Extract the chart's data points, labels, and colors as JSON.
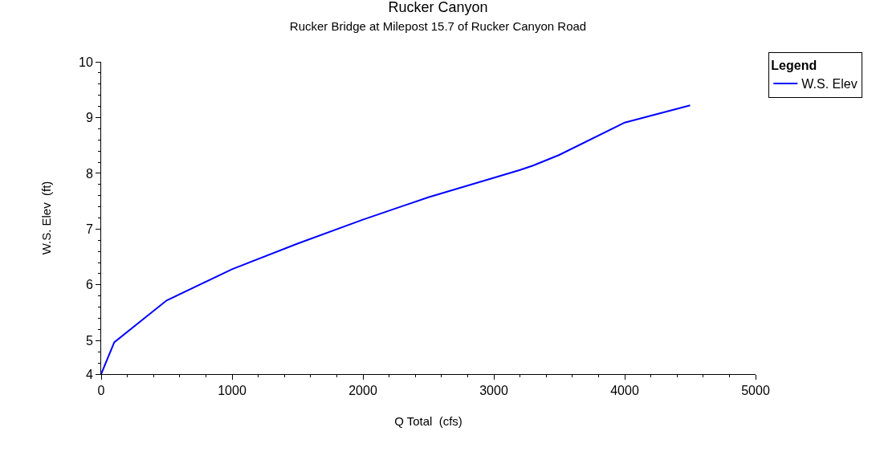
{
  "chart_data": {
    "type": "line",
    "title": "Rucker Canyon",
    "subtitle": "Rucker Bridge at Milepost 15.7 of Rucker Canyon Road",
    "xlabel": "Q Total  (cfs)",
    "ylabel": "W.S. Elev  (ft)",
    "legend_title": "Legend",
    "x": [
      0,
      100,
      500,
      1000,
      1500,
      2000,
      2500,
      3000,
      3200,
      3300,
      3500,
      4000,
      4500
    ],
    "series": [
      {
        "name": "W.S. Elev",
        "color": "#0000ff",
        "values": [
          4.4,
          4.97,
          5.72,
          6.28,
          6.74,
          7.17,
          7.57,
          7.92,
          8.06,
          8.14,
          8.33,
          8.91,
          9.22
        ]
      }
    ],
    "xlim": [
      0,
      5000
    ],
    "xticks": [
      0,
      1000,
      2000,
      3000,
      4000,
      5000
    ],
    "ylim": [
      4.4,
      10
    ],
    "yticks": [
      {
        "value": 4.4,
        "label": "4"
      },
      5,
      6,
      7,
      8,
      9,
      10
    ],
    "legend": "top right",
    "marker": "none",
    "line_style": "solid"
  }
}
